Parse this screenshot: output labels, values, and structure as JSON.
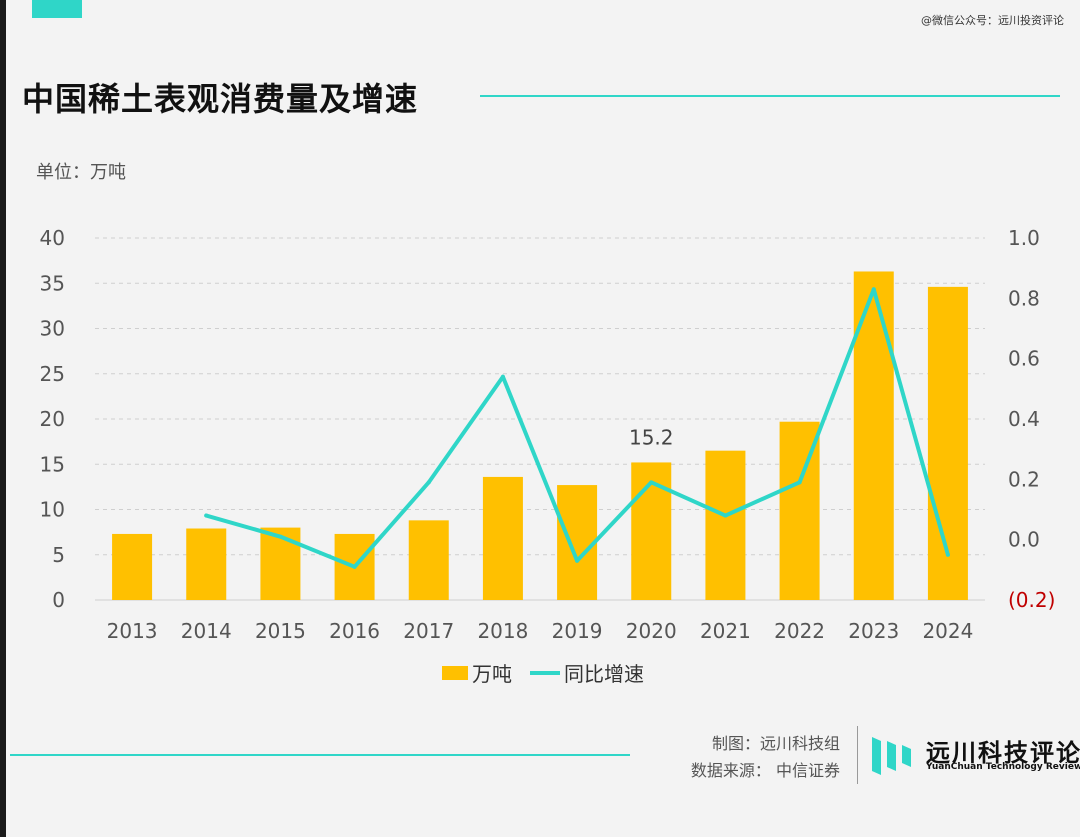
{
  "header": {
    "watermark": "@微信公众号：远川投资评论",
    "title": "中国稀土表观消费量及增速"
  },
  "unit_label": "单位：万吨",
  "chart_data": {
    "type": "bar",
    "title": "中国稀土表观消费量及增速",
    "categories": [
      "2013",
      "2014",
      "2015",
      "2016",
      "2017",
      "2018",
      "2019",
      "2020",
      "2021",
      "2022",
      "2023",
      "2024"
    ],
    "series": [
      {
        "name": "万吨",
        "type": "bar",
        "axis": "left",
        "color": "#ffc000",
        "values": [
          7.3,
          7.9,
          8.0,
          7.3,
          8.8,
          13.6,
          12.7,
          15.2,
          16.5,
          19.7,
          36.3,
          34.6
        ]
      },
      {
        "name": "同比增速",
        "type": "line",
        "axis": "right",
        "color": "#2fd6c8",
        "values": [
          null,
          0.08,
          0.01,
          -0.09,
          0.19,
          0.54,
          -0.07,
          0.19,
          0.08,
          0.19,
          0.83,
          -0.05
        ]
      }
    ],
    "left_axis": {
      "ylim": [
        0,
        40
      ],
      "ticks": [
        "0",
        "5",
        "10",
        "15",
        "20",
        "25",
        "30",
        "35",
        "40"
      ]
    },
    "right_axis": {
      "ylim": [
        -0.2,
        1.0
      ],
      "ticks": [
        "(0.2)",
        "0.0",
        "0.2",
        "0.4",
        "0.6",
        "0.8",
        "1.0"
      ]
    },
    "data_labels": [
      {
        "category": "2020",
        "text": "15.2"
      }
    ],
    "grid": true,
    "legend_position": "bottom",
    "colors": {
      "bar": "#ffc000",
      "line": "#2fd6c8",
      "negative_tick": "#c00000"
    }
  },
  "footer": {
    "made_by": "制图：远川科技组",
    "source": "数据来源：  中信证券",
    "logo_cn": "远川科技评论",
    "logo_en": "YuanChuan Technology Review"
  }
}
